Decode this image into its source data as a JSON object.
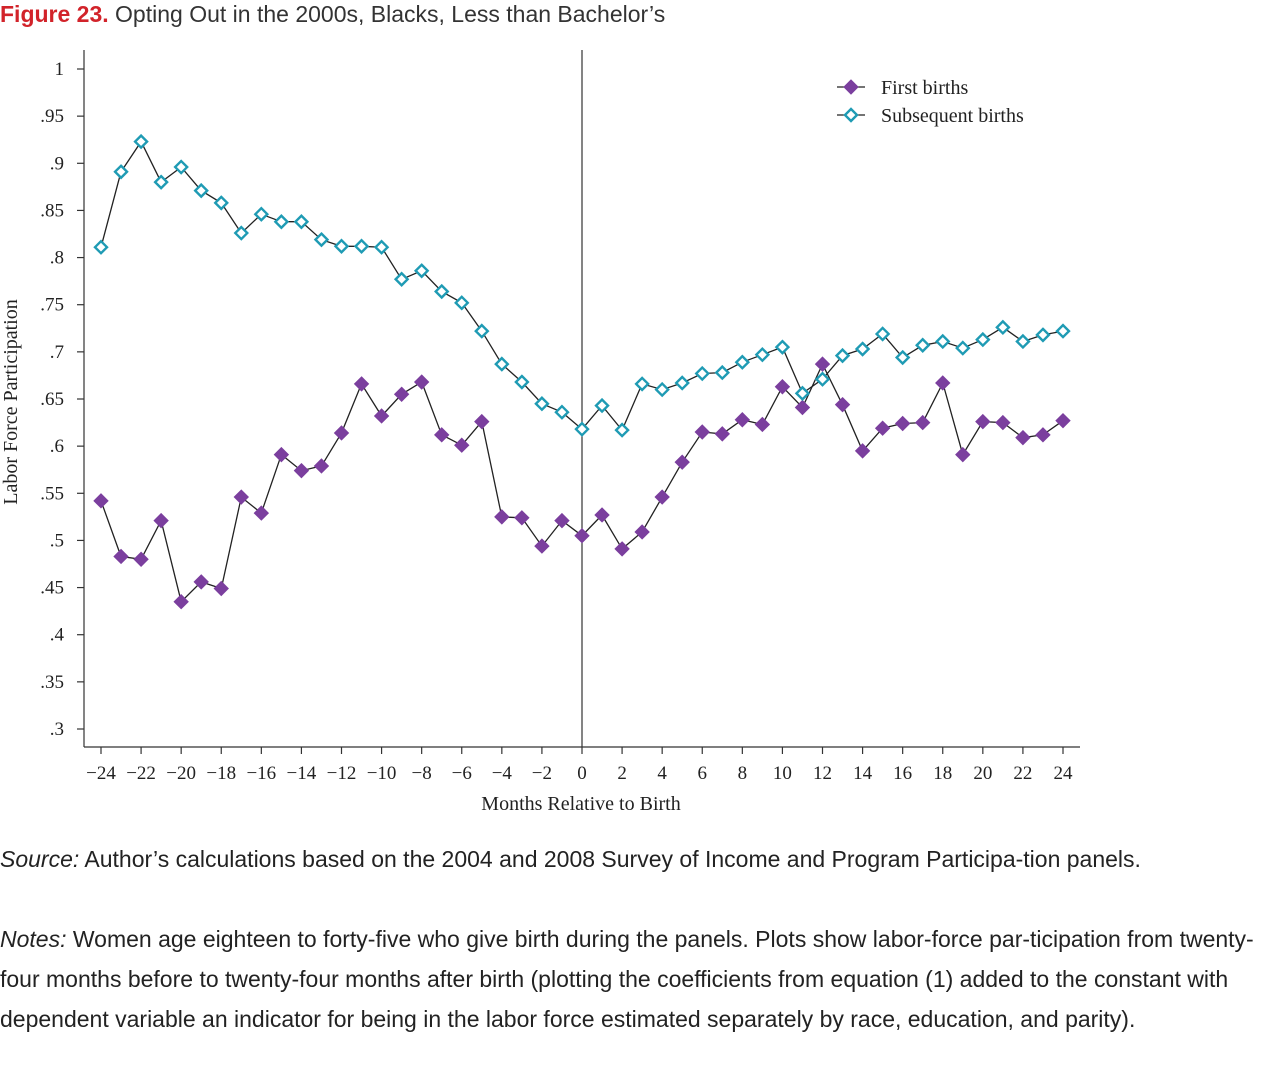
{
  "figure": {
    "number": "Figure 23.",
    "title": "Opting Out in the 2000s, Blacks, Less than Bachelor’s"
  },
  "chart_data": {
    "type": "line",
    "xlabel": "Months Relative to Birth",
    "ylabel": "Labor Force Participation",
    "xlim": [
      -25,
      25
    ],
    "ylim": [
      0.3,
      1.0
    ],
    "xticks": [
      -24,
      -22,
      -20,
      -18,
      -16,
      -14,
      -12,
      -10,
      -8,
      -6,
      -4,
      -2,
      0,
      2,
      4,
      6,
      8,
      10,
      12,
      14,
      16,
      18,
      20,
      22,
      24
    ],
    "xtick_labels": [
      "−24",
      "−22",
      "−20",
      "−18",
      "−16",
      "−14",
      "−12",
      "−10",
      "−8",
      "−6",
      "−4",
      "−2",
      "0",
      "2",
      "4",
      "6",
      "8",
      "10",
      "12",
      "14",
      "16",
      "18",
      "20",
      "22",
      "24"
    ],
    "yticks": [
      0.3,
      0.35,
      0.4,
      0.45,
      0.5,
      0.55,
      0.6,
      0.65,
      0.7,
      0.75,
      0.8,
      0.85,
      0.9,
      0.95,
      1.0
    ],
    "ytick_labels": [
      ".3",
      ".35",
      ".4",
      ".45",
      ".5",
      ".55",
      ".6",
      ".65",
      ".7",
      ".75",
      ".8",
      ".85",
      ".9",
      ".95",
      "1"
    ],
    "vline_x": 0,
    "grid": false,
    "legend_position": "top-right",
    "x": [
      -24,
      -23,
      -22,
      -21,
      -20,
      -19,
      -18,
      -17,
      -16,
      -15,
      -14,
      -13,
      -12,
      -11,
      -10,
      -9,
      -8,
      -7,
      -6,
      -5,
      -4,
      -3,
      -2,
      -1,
      0,
      1,
      2,
      3,
      4,
      5,
      6,
      7,
      8,
      9,
      10,
      11,
      12,
      13,
      14,
      15,
      16,
      17,
      18,
      19,
      20,
      21,
      22,
      23,
      24
    ],
    "series": [
      {
        "name": "First births",
        "marker": "filled-diamond",
        "color": "#7b3f9e",
        "values": [
          0.542,
          0.483,
          0.48,
          0.521,
          0.435,
          0.456,
          0.449,
          0.546,
          0.529,
          0.591,
          0.574,
          0.579,
          0.614,
          0.666,
          0.632,
          0.655,
          0.668,
          0.612,
          0.601,
          0.626,
          0.525,
          0.524,
          0.494,
          0.521,
          0.505,
          0.527,
          0.491,
          0.509,
          0.546,
          0.583,
          0.615,
          0.613,
          0.628,
          0.623,
          0.663,
          0.641,
          0.687,
          0.644,
          0.595,
          0.619,
          0.624,
          0.625,
          0.667,
          0.591,
          0.626,
          0.625,
          0.609,
          0.612,
          0.627
        ]
      },
      {
        "name": "Subsequent births",
        "marker": "hollow-diamond",
        "color": "#1f9bb4",
        "values": [
          0.811,
          0.891,
          0.923,
          0.88,
          0.896,
          0.871,
          0.858,
          0.826,
          0.846,
          0.838,
          0.838,
          0.819,
          0.812,
          0.812,
          0.811,
          0.777,
          0.786,
          0.764,
          0.752,
          0.722,
          0.687,
          0.668,
          0.645,
          0.636,
          0.618,
          0.643,
          0.617,
          0.666,
          0.66,
          0.667,
          0.677,
          0.678,
          0.689,
          0.697,
          0.705,
          0.656,
          0.671,
          0.696,
          0.703,
          0.719,
          0.694,
          0.707,
          0.711,
          0.704,
          0.713,
          0.726,
          0.711,
          0.718,
          0.722
        ]
      }
    ]
  },
  "source": {
    "label": "Source:",
    "text": " Author’s calculations based on the 2004 and 2008 Survey of Income and Program Participa-tion panels."
  },
  "notes": {
    "label": "Notes:",
    "text": " Women age eighteen to forty-five who give birth during the panels. Plots show labor-force par-ticipation from twenty-four months before to twenty-four months after birth (plotting the coefficients from equation (1) added to the constant with dependent variable an indicator for being in the labor force estimated separately by race, education, and parity)."
  }
}
